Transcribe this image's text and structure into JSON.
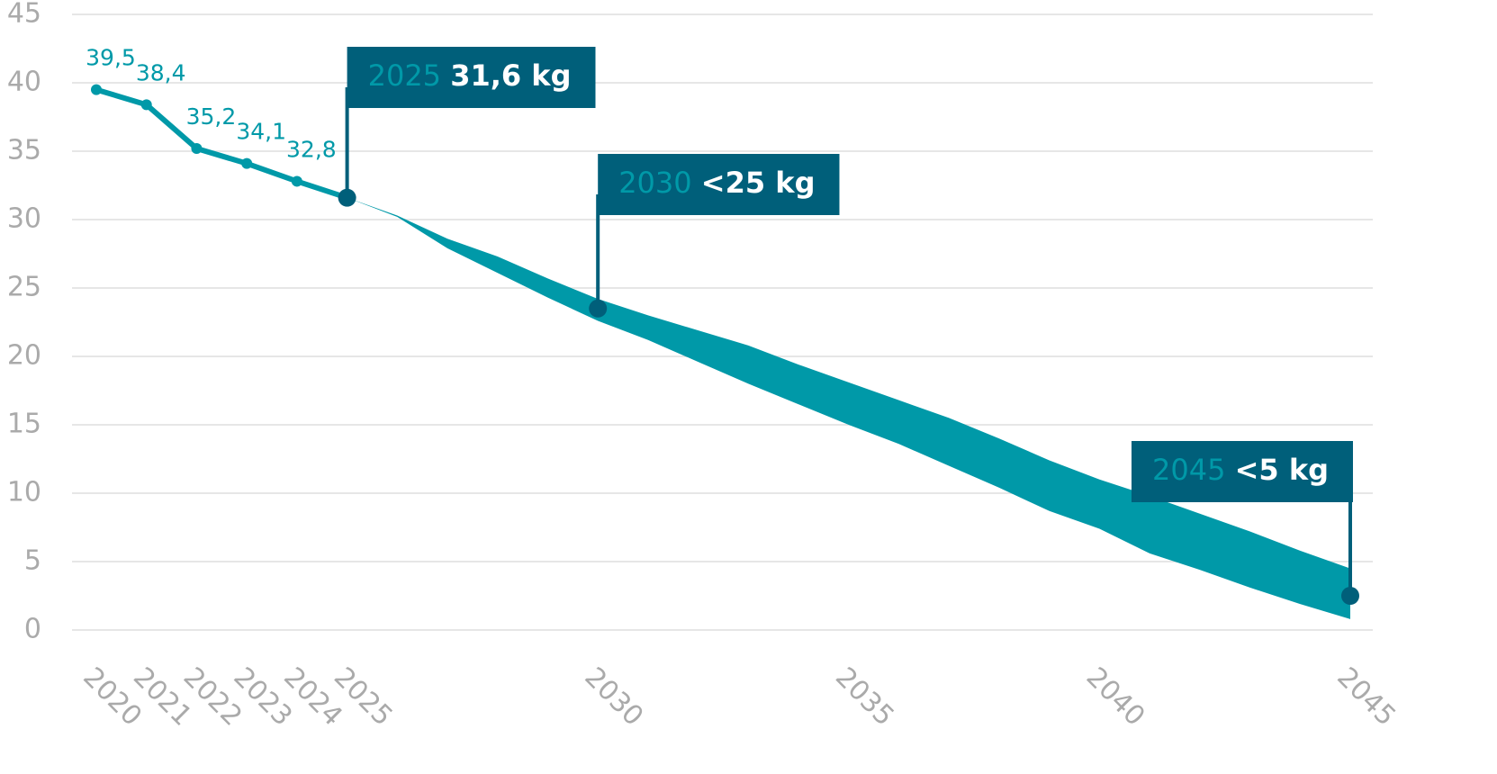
{
  "chart_data": {
    "type": "line",
    "line": {
      "color": "#0099a8",
      "x": [
        2020,
        2021,
        2022,
        2023,
        2024,
        2025
      ],
      "values": [
        39.5,
        38.4,
        35.2,
        34.1,
        32.8,
        31.6
      ],
      "value_labels": [
        "39,5",
        "38,4",
        "35,2",
        "34,1",
        "32,8",
        null
      ]
    },
    "band": {
      "color": "#0099a8",
      "x": [
        2025,
        2026,
        2027,
        2028,
        2029,
        2030,
        2031,
        2032,
        2033,
        2034,
        2035,
        2036,
        2037,
        2038,
        2039,
        2040,
        2041,
        2042,
        2043,
        2044,
        2045
      ],
      "upper": [
        31.6,
        30.3,
        28.6,
        27.3,
        25.7,
        24.2,
        23.0,
        21.9,
        20.8,
        19.4,
        18.1,
        16.8,
        15.5,
        14.0,
        12.4,
        11.0,
        9.8,
        8.5,
        7.2,
        5.8,
        4.5
      ],
      "lower": [
        31.6,
        30.2,
        27.9,
        26.1,
        24.3,
        22.6,
        21.2,
        19.6,
        18.0,
        16.5,
        15.0,
        13.6,
        12.0,
        10.4,
        8.7,
        7.4,
        5.6,
        4.4,
        3.1,
        1.9,
        0.8
      ]
    },
    "annotations": [
      {
        "x": 2025,
        "y": 31.6,
        "year": "2025",
        "label": "31,6 kg"
      },
      {
        "x": 2030,
        "y": 23.5,
        "year": "2030",
        "label": "<25 kg"
      },
      {
        "x": 2045,
        "y": 2.5,
        "year": "2045",
        "label": "<5 kg"
      }
    ],
    "annotation_color": "#005f7a",
    "xlim": [
      2020,
      2045
    ],
    "xticks": [
      2020,
      2021,
      2022,
      2023,
      2024,
      2025,
      2030,
      2035,
      2040,
      2045
    ],
    "ylim": [
      0,
      45
    ],
    "yticks": [
      0,
      5,
      10,
      15,
      20,
      25,
      30,
      35,
      40,
      45
    ],
    "grid": true
  }
}
